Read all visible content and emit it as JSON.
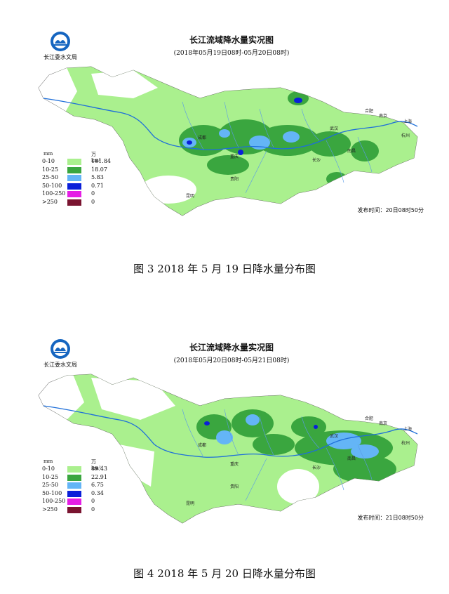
{
  "maps": [
    {
      "org": "长江委水文局",
      "title": "长江流域降水量实况图",
      "subtitle": "(2018年05月19日08时-05月20日08时)",
      "legend_unit_mm": "mm",
      "legend_unit_area": "万km²",
      "legend": [
        {
          "range": "0-10",
          "color": "#aaf08e",
          "area": "101.84"
        },
        {
          "range": "10-25",
          "color": "#3aa63f",
          "area": "18.07"
        },
        {
          "range": "25-50",
          "color": "#64b5f6",
          "area": "5.83"
        },
        {
          "range": "50-100",
          "color": "#0a1fd9",
          "area": "0.71"
        },
        {
          "range": "100-250",
          "color": "#e51ee5",
          "area": "0"
        },
        {
          "range": ">250",
          "color": "#7a1430",
          "area": "0"
        }
      ],
      "publish_time": "发布时间：20日08时50分",
      "cities": [
        "成都",
        "重庆",
        "贵阳",
        "昆明",
        "武汉",
        "长沙",
        "南昌",
        "合肥",
        "南京",
        "上海",
        "杭州"
      ],
      "caption": "图 3   2018 年 5 月 19 日降水量分布图"
    },
    {
      "org": "长江委水文局",
      "title": "长江流域降水量实况图",
      "subtitle": "(2018年05月20日08时-05月21日08时)",
      "legend_unit_mm": "mm",
      "legend_unit_area": "万km²",
      "legend": [
        {
          "range": "0-10",
          "color": "#aaf08e",
          "area": "89.43"
        },
        {
          "range": "10-25",
          "color": "#3aa63f",
          "area": "22.91"
        },
        {
          "range": "25-50",
          "color": "#64b5f6",
          "area": "6.75"
        },
        {
          "range": "50-100",
          "color": "#0a1fd9",
          "area": "0.34"
        },
        {
          "range": "100-250",
          "color": "#e51ee5",
          "area": "0"
        },
        {
          "range": ">250",
          "color": "#7a1430",
          "area": "0"
        }
      ],
      "publish_time": "发布时间：21日08时50分",
      "cities": [
        "成都",
        "重庆",
        "贵阳",
        "昆明",
        "武汉",
        "长沙",
        "南昌",
        "合肥",
        "南京",
        "上海",
        "杭州"
      ],
      "caption": "图 4   2018 年 5 月 20 日降水量分布图"
    }
  ]
}
